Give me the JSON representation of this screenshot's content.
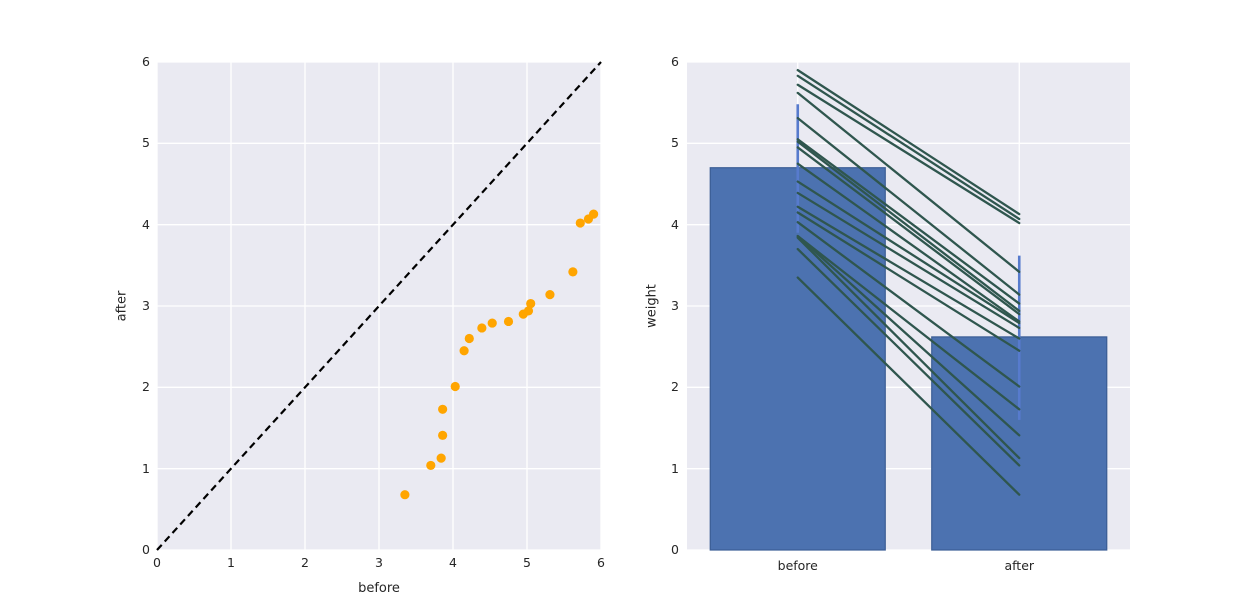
{
  "figure": {
    "background": "#ffffff",
    "axes_background": "#eaeaf2",
    "grid_color": "#ffffff",
    "text_color": "#262626"
  },
  "chart_data": [
    {
      "type": "scatter",
      "xlabel": "before",
      "ylabel": "after",
      "xlim": [
        0,
        6
      ],
      "ylim": [
        0,
        6
      ],
      "xticks": [
        0,
        1,
        2,
        3,
        4,
        5,
        6
      ],
      "yticks": [
        0,
        1,
        2,
        3,
        4,
        5,
        6
      ],
      "grid": true,
      "marker_color": "#ffa500",
      "identity_line": {
        "from": [
          0,
          0
        ],
        "to": [
          6,
          6
        ],
        "color": "#000000",
        "style": "dashed"
      },
      "points": [
        [
          3.35,
          0.68
        ],
        [
          3.7,
          1.04
        ],
        [
          3.84,
          1.13
        ],
        [
          3.86,
          1.41
        ],
        [
          3.86,
          1.73
        ],
        [
          4.03,
          2.01
        ],
        [
          4.15,
          2.45
        ],
        [
          4.22,
          2.6
        ],
        [
          4.39,
          2.73
        ],
        [
          4.53,
          2.79
        ],
        [
          4.75,
          2.81
        ],
        [
          4.95,
          2.9
        ],
        [
          5.02,
          2.94
        ],
        [
          5.05,
          3.03
        ],
        [
          5.31,
          3.14
        ],
        [
          5.62,
          3.42
        ],
        [
          5.72,
          4.02
        ],
        [
          5.83,
          4.07
        ],
        [
          5.9,
          4.13
        ]
      ]
    },
    {
      "type": "bar",
      "categories": [
        "before",
        "after"
      ],
      "values": [
        4.7,
        2.62
      ],
      "ylabel": "weight",
      "ylim": [
        0,
        6
      ],
      "yticks": [
        0,
        1,
        2,
        3,
        4,
        5,
        6
      ],
      "grid": true,
      "bar_color": "#4c72b0",
      "bar_edge_color": "#3b5d95",
      "error_color": "#577bcd",
      "error_ranges": [
        [
          3.9,
          5.48
        ],
        [
          1.6,
          3.62
        ]
      ],
      "line_color": "#2f564e",
      "paired_lines": [
        [
          5.9,
          4.13
        ],
        [
          5.83,
          4.07
        ],
        [
          5.72,
          4.02
        ],
        [
          5.62,
          3.42
        ],
        [
          5.31,
          3.14
        ],
        [
          5.05,
          3.03
        ],
        [
          5.02,
          2.94
        ],
        [
          4.95,
          2.9
        ],
        [
          4.75,
          2.81
        ],
        [
          4.53,
          2.79
        ],
        [
          4.39,
          2.73
        ],
        [
          4.22,
          2.6
        ],
        [
          4.15,
          2.45
        ],
        [
          4.03,
          2.01
        ],
        [
          3.86,
          1.73
        ],
        [
          3.86,
          1.41
        ],
        [
          3.84,
          1.13
        ],
        [
          3.7,
          1.04
        ],
        [
          3.35,
          0.68
        ]
      ]
    }
  ]
}
